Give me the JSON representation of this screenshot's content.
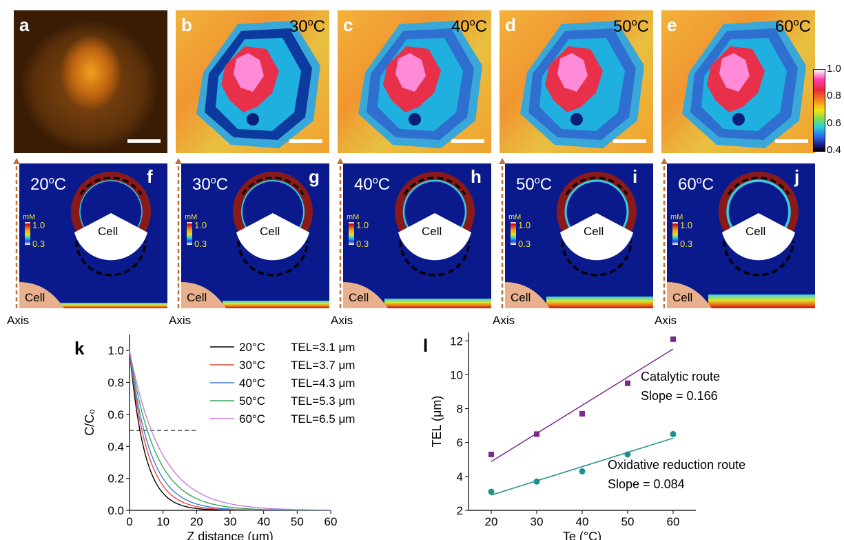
{
  "top_panels": [
    {
      "letter": "a",
      "temp": ""
    },
    {
      "letter": "b",
      "temp": "30°C"
    },
    {
      "letter": "c",
      "temp": "40°C"
    },
    {
      "letter": "d",
      "temp": "50°C"
    },
    {
      "letter": "e",
      "temp": "60°C"
    }
  ],
  "colorbar_top": {
    "ticks": [
      "1.0",
      "0.8",
      "0.6",
      "0.4"
    ]
  },
  "sim_panels": [
    {
      "letter": "f",
      "temp": "20°C"
    },
    {
      "letter": "g",
      "temp": "30°C"
    },
    {
      "letter": "h",
      "temp": "40°C"
    },
    {
      "letter": "i",
      "temp": "50°C"
    },
    {
      "letter": "j",
      "temp": "60°C"
    }
  ],
  "sim_labels": {
    "cell": "Cell",
    "axis": "Axis",
    "unit": "mM",
    "cb_max": "1.0",
    "cb_min": "0.3"
  },
  "panel_k_letter": "k",
  "panel_l_letter": "l",
  "chart_data": [
    {
      "type": "line",
      "xlabel": "Z distance (μm)",
      "ylabel": "C/C₀",
      "xlim": [
        0,
        60
      ],
      "ylim": [
        0,
        1.1
      ],
      "xticks": [
        0,
        10,
        20,
        30,
        40,
        50,
        60
      ],
      "yticks": [
        0.0,
        0.2,
        0.4,
        0.6,
        0.8,
        1.0
      ],
      "reference_line": {
        "y": 0.5,
        "x_start": 0,
        "x_end": 20,
        "style": "dashed"
      },
      "series": [
        {
          "name": "20°C",
          "label": "TEL=3.1 μm",
          "tel": 3.1,
          "color": "#000000"
        },
        {
          "name": "30°C",
          "label": "TEL=3.7 μm",
          "tel": 3.7,
          "color": "#e8453c"
        },
        {
          "name": "40°C",
          "label": "TEL=4.3 μm",
          "tel": 4.3,
          "color": "#3b7dd8"
        },
        {
          "name": "50°C",
          "label": "TEL=5.3 μm",
          "tel": 5.3,
          "color": "#33a853"
        },
        {
          "name": "60°C",
          "label": "TEL=6.5 μm",
          "tel": 6.5,
          "color": "#c77ad8"
        }
      ]
    },
    {
      "type": "scatter",
      "xlabel": "Te (°C)",
      "ylabel": "TEL (μm)",
      "xlim": [
        15,
        65
      ],
      "ylim": [
        2,
        12.5
      ],
      "xticks": [
        20,
        30,
        40,
        50,
        60
      ],
      "yticks": [
        2,
        4,
        6,
        8,
        10,
        12
      ],
      "series": [
        {
          "name": "Catalytic route",
          "slope_label": "Slope = 0.166",
          "color": "#7b2a8c",
          "marker": "square",
          "x": [
            20,
            30,
            40,
            50,
            60
          ],
          "y": [
            5.3,
            6.5,
            7.7,
            9.5,
            12.1
          ],
          "fit": {
            "x": [
              20,
              60
            ],
            "y": [
              4.88,
              11.52
            ]
          }
        },
        {
          "name": "Oxidative reduction route",
          "slope_label": "Slope = 0.084",
          "color": "#1f8f8a",
          "marker": "circle",
          "x": [
            20,
            30,
            40,
            50,
            60
          ],
          "y": [
            3.1,
            3.7,
            4.3,
            5.3,
            6.5
          ],
          "fit": {
            "x": [
              20,
              60
            ],
            "y": [
              2.9,
              6.26
            ]
          }
        }
      ]
    }
  ]
}
